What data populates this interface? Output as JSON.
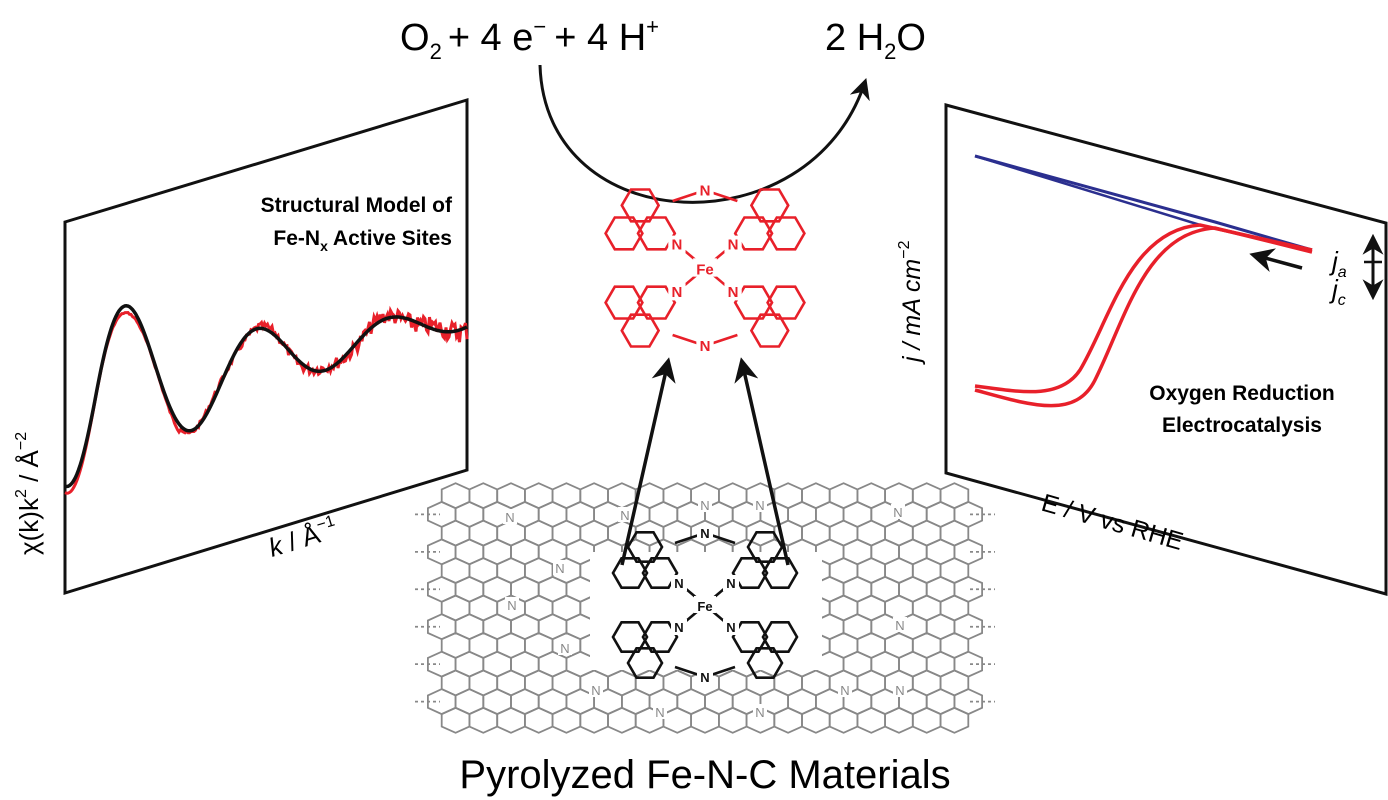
{
  "reaction": {
    "reactant_main": "O",
    "reactant_sub": "2",
    "reactant_rest": "+ 4 e",
    "electron_charge": "−",
    "plus": "+ 4 H",
    "proton_charge": "+",
    "product_coef": "2 H",
    "product_sub": "2",
    "product_end": "O"
  },
  "left_panel": {
    "title_line1": "Structural Model of",
    "title_line2_main": "Fe-N",
    "title_line2_sub": "x",
    "title_line2_rest": " Active Sites",
    "xlabel_k": "k",
    "xlabel_rest": " / Å",
    "xlabel_sup": "−1",
    "ylabel_main": "χ(k)k",
    "ylabel_sup1": "2",
    "ylabel_mid": " / Å",
    "ylabel_sup2": "−2",
    "series": [
      {
        "color": "#e8202a"
      },
      {
        "color": "#111111"
      }
    ]
  },
  "right_panel": {
    "title_line1": "Oxygen Reduction",
    "title_line2": "Electrocatalysis",
    "xlabel": "E / V vs RHE",
    "ylabel_j": "j",
    "ylabel_rest": " / mA cm",
    "ylabel_sup": "−2",
    "ja_main": "j",
    "ja_sub": "a",
    "jc_main": "j",
    "jc_sub": "c",
    "series": [
      {
        "color": "#2b2f8f"
      },
      {
        "color": "#e8202a"
      }
    ]
  },
  "molecule": {
    "center_atom": "Fe",
    "n_atom": "N",
    "color": "#e8202a"
  },
  "embedded_molecule": {
    "center_atom": "Fe",
    "n_atom": "N"
  },
  "bottom_label": "Pyrolyzed Fe-N-C Materials",
  "colors": {
    "red": "#e8202a",
    "blue": "#2b2f8f",
    "black": "#111111",
    "gray": "#888888"
  }
}
